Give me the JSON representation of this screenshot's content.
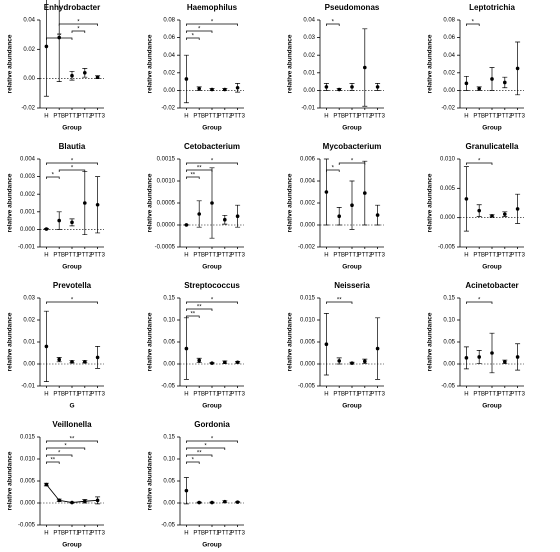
{
  "chart_data": [
    {
      "type": "dot",
      "title": "Enhydrobacter",
      "x_label": "Group",
      "y_label": "relative abundance",
      "categories": [
        "H",
        "PTB",
        "PTT1",
        "PTT2",
        "PTT3"
      ],
      "values": [
        0.022,
        0.028,
        0.002,
        0.004,
        0.001
      ],
      "errors": [
        0.034,
        0.03,
        0.003,
        0.003,
        0.001
      ],
      "ylim": [
        -0.02,
        0.04
      ],
      "yticks": [
        0.04,
        0.02,
        {
          "value": 0,
          "label": "0.00"
        },
        -0.02
      ],
      "zero_line": true,
      "color": "#000000",
      "brackets": [
        {
          "from": "H",
          "to": "PTT1",
          "label": "**"
        },
        {
          "from": "PTT1",
          "to": "PTT2",
          "label": "*"
        },
        {
          "from": "PTB",
          "to": "PTT3",
          "label": "*"
        }
      ]
    },
    {
      "type": "dot",
      "title": "Haemophilus",
      "x_label": "Group",
      "y_label": "relative abundance",
      "categories": [
        "H",
        "PTB",
        "PTT1",
        "PTT2",
        "PTT3"
      ],
      "values": [
        0.013,
        0.002,
        0.001,
        0.001,
        0.003
      ],
      "errors": [
        0.027,
        0.002,
        0.001,
        0.001,
        0.005
      ],
      "ylim": [
        -0.02,
        0.08
      ],
      "yticks": [
        0.08,
        0.06,
        0.04,
        0.02,
        {
          "value": 0,
          "label": "0.00"
        },
        -0.02
      ],
      "zero_line": true,
      "color": "#000000",
      "brackets": [
        {
          "from": "H",
          "to": "PTB",
          "label": "*"
        },
        {
          "from": "H",
          "to": "PTT1",
          "label": "*"
        },
        {
          "from": "H",
          "to": "PTT3",
          "label": "*"
        }
      ]
    },
    {
      "type": "dot",
      "title": "Pseudomonas",
      "x_label": "Group",
      "y_label": "relative abundance",
      "categories": [
        "H",
        "PTB",
        "PTT1",
        "PTT2",
        "PTT3"
      ],
      "values": [
        0.002,
        0.0005,
        0.002,
        0.013,
        0.002
      ],
      "errors": [
        0.002,
        0.0005,
        0.002,
        0.022,
        0.002
      ],
      "ylim": [
        -0.01,
        0.04
      ],
      "yticks": [
        0.04,
        0.03,
        0.02,
        0.01,
        {
          "value": 0,
          "label": "0.00"
        },
        -0.01
      ],
      "zero_line": true,
      "color": "#000000",
      "brackets": [
        {
          "from": "H",
          "to": "PTB",
          "label": "*"
        }
      ]
    },
    {
      "type": "dot",
      "title": "Leptotrichia",
      "x_label": "Group",
      "y_label": "relative abundance",
      "categories": [
        "H",
        "PTB",
        "PTT1",
        "PTT2",
        "PTT3"
      ],
      "values": [
        0.008,
        0.002,
        0.013,
        0.009,
        0.025
      ],
      "errors": [
        0.008,
        0.002,
        0.013,
        0.006,
        0.03
      ],
      "ylim": [
        -0.02,
        0.08
      ],
      "yticks": [
        0.08,
        0.06,
        0.04,
        0.02,
        {
          "value": 0,
          "label": "0.00"
        },
        -0.02
      ],
      "zero_line": true,
      "color": "#000000",
      "brackets": [
        {
          "from": "H",
          "to": "PTB",
          "label": "*"
        }
      ]
    },
    {
      "type": "dot",
      "title": "Blautia",
      "x_label": "Group",
      "y_label": "relative abundance",
      "categories": [
        "H",
        "PTB",
        "PTT1",
        "PTT2",
        "PTT3"
      ],
      "values": [
        2e-05,
        0.0005,
        0.0004,
        0.0015,
        0.0014
      ],
      "errors": [
        3e-05,
        0.0005,
        0.0002,
        0.0018,
        0.0016
      ],
      "ylim": [
        -0.001,
        0.004
      ],
      "yticks": [
        0.004,
        0.003,
        0.002,
        0.001,
        {
          "value": 0,
          "label": "0.000"
        },
        -0.001
      ],
      "zero_line": true,
      "color": "#000000",
      "brackets": [
        {
          "from": "H",
          "to": "PTB",
          "label": "*"
        },
        {
          "from": "PTB",
          "to": "PTT2",
          "label": "*"
        },
        {
          "from": "H",
          "to": "PTT3",
          "label": "*"
        }
      ]
    },
    {
      "type": "dot",
      "title": "Cetobacterium",
      "x_label": "Group",
      "y_label": "relative abundance",
      "categories": [
        "H",
        "PTB",
        "PTT1",
        "PTT2",
        "PTT3"
      ],
      "values": [
        2e-06,
        0.00025,
        0.0005,
        0.00012,
        0.0002
      ],
      "errors": [
        2e-06,
        0.0003,
        0.0008,
        0.0001,
        0.00025
      ],
      "ylim": [
        -0.0005,
        0.0015
      ],
      "yticks": [
        0.0015,
        {
          "value": 0.001,
          "label": "0.0010"
        },
        0.0005,
        {
          "value": 0,
          "label": "0.0000"
        },
        -0.0005
      ],
      "zero_line": true,
      "color": "#000000",
      "brackets": [
        {
          "from": "H",
          "to": "PTB",
          "label": "**"
        },
        {
          "from": "H",
          "to": "PTT1",
          "label": "**"
        },
        {
          "from": "H",
          "to": "PTT3",
          "label": "*"
        }
      ]
    },
    {
      "type": "dot",
      "title": "Mycobacterium",
      "x_label": "Group",
      "y_label": "relative abundance",
      "categories": [
        "H",
        "PTB",
        "PTT1",
        "PTT2",
        "PTT3"
      ],
      "values": [
        0.003,
        0.0008,
        0.0018,
        0.0029,
        0.0009
      ],
      "errors": [
        0.003,
        0.0008,
        0.0022,
        0.0029,
        0.0009
      ],
      "ylim": [
        -0.002,
        0.006
      ],
      "yticks": [
        0.006,
        0.004,
        0.002,
        {
          "value": 0,
          "label": "0.000"
        },
        -0.002
      ],
      "zero_line": true,
      "color": "#000000",
      "brackets": [
        {
          "from": "H",
          "to": "PTB",
          "label": "*"
        },
        {
          "from": "PTB",
          "to": "PTT2",
          "label": "*"
        }
      ]
    },
    {
      "type": "dot",
      "title": "Granulicatella",
      "x_label": "Group",
      "y_label": "relative abundance",
      "categories": [
        "H",
        "PTB",
        "PTT1",
        "PTT2",
        "PTT3"
      ],
      "values": [
        0.0032,
        0.0012,
        0.0003,
        0.0006,
        0.0015
      ],
      "errors": [
        0.0055,
        0.001,
        0.0002,
        0.0004,
        0.0025
      ],
      "ylim": [
        -0.005,
        0.01
      ],
      "yticks": [
        {
          "value": 0.01,
          "label": "0.010"
        },
        0.005,
        {
          "value": 0,
          "label": "0.000"
        },
        -0.005
      ],
      "zero_line": true,
      "color": "#000000",
      "brackets": [
        {
          "from": "H",
          "to": "PTT1",
          "label": "*"
        }
      ]
    },
    {
      "type": "dot",
      "title": "Prevotella",
      "x_label": "G",
      "y_label": "relative abundance",
      "categories": [
        "H",
        "PTB",
        "PTT1",
        "PTT2",
        "PTT3"
      ],
      "values": [
        0.008,
        0.002,
        0.001,
        0.001,
        0.003
      ],
      "errors": [
        0.016,
        0.001,
        0.0005,
        0.0005,
        0.005
      ],
      "ylim": [
        -0.01,
        0.03
      ],
      "yticks": [
        0.03,
        0.02,
        0.01,
        {
          "value": 0,
          "label": "0.00"
        },
        -0.01
      ],
      "zero_line": true,
      "color": "#000000",
      "brackets": [
        {
          "from": "H",
          "to": "PTT3",
          "label": "*"
        }
      ]
    },
    {
      "type": "dot",
      "title": "Streptococcus",
      "x_label": "Group",
      "y_label": "relative abundance",
      "categories": [
        "H",
        "PTB",
        "PTT1",
        "PTT2",
        "PTT3"
      ],
      "values": [
        0.035,
        0.008,
        0.002,
        0.004,
        0.004
      ],
      "errors": [
        0.07,
        0.005,
        0.001,
        0.003,
        0.002
      ],
      "ylim": [
        -0.05,
        0.15
      ],
      "yticks": [
        0.15,
        {
          "value": 0.1,
          "label": "0.10"
        },
        0.05,
        {
          "value": 0,
          "label": "0.00"
        },
        -0.05
      ],
      "zero_line": true,
      "color": "#000000",
      "brackets": [
        {
          "from": "H",
          "to": "PTB",
          "label": "**"
        },
        {
          "from": "H",
          "to": "PTT1",
          "label": "**"
        },
        {
          "from": "H",
          "to": "PTT3",
          "label": "*"
        }
      ]
    },
    {
      "type": "dot",
      "title": "Neisseria",
      "x_label": "Group",
      "y_label": "relative abundance",
      "categories": [
        "H",
        "PTB",
        "PTT1",
        "PTT2",
        "PTT3"
      ],
      "values": [
        0.0045,
        0.0007,
        0.0002,
        0.0006,
        0.0035
      ],
      "errors": [
        0.007,
        0.0007,
        0.0002,
        0.0005,
        0.007
      ],
      "ylim": [
        -0.005,
        0.015
      ],
      "yticks": [
        0.015,
        {
          "value": 0.01,
          "label": "0.010"
        },
        0.005,
        {
          "value": 0,
          "label": "0.000"
        },
        -0.005
      ],
      "zero_line": true,
      "color": "#000000",
      "brackets": [
        {
          "from": "H",
          "to": "PTT1",
          "label": "**"
        }
      ]
    },
    {
      "type": "dot",
      "title": "Acinetobacter",
      "x_label": "Group",
      "y_label": "relative abundance",
      "categories": [
        "H",
        "PTB",
        "PTT1",
        "PTT2",
        "PTT3"
      ],
      "values": [
        0.014,
        0.016,
        0.025,
        0.005,
        0.016
      ],
      "errors": [
        0.025,
        0.015,
        0.045,
        0.004,
        0.03
      ],
      "ylim": [
        -0.05,
        0.15
      ],
      "yticks": [
        0.15,
        {
          "value": 0.1,
          "label": "0.10"
        },
        0.05,
        {
          "value": 0,
          "label": "0.00"
        },
        -0.05
      ],
      "zero_line": true,
      "color": "#000000",
      "brackets": [
        {
          "from": "H",
          "to": "PTT1",
          "label": "*"
        }
      ]
    },
    {
      "type": "dot",
      "title": "Veillonella",
      "x_label": "Group",
      "y_label": "relative abundance",
      "categories": [
        "H",
        "PTB",
        "PTT1",
        "PTT2",
        "PTT3"
      ],
      "values": [
        0.0042,
        0.0006,
        0.0001,
        0.0004,
        0.0006
      ],
      "errors": [
        0.0003,
        0.0003,
        0.0001,
        0.0004,
        0.0008
      ],
      "ylim": [
        -0.005,
        0.015
      ],
      "yticks": [
        0.015,
        {
          "value": 0.01,
          "label": "0.010"
        },
        0.005,
        {
          "value": 0,
          "label": "0.000"
        },
        -0.005
      ],
      "zero_line": true,
      "connect": true,
      "color": "#000000",
      "brackets": [
        {
          "from": "H",
          "to": "PTB",
          "label": "**"
        },
        {
          "from": "H",
          "to": "PTT1",
          "label": "*"
        },
        {
          "from": "H",
          "to": "PTT2",
          "label": "*"
        },
        {
          "from": "H",
          "to": "PTT3",
          "label": "**"
        }
      ]
    },
    {
      "type": "dot",
      "title": "Gordonia",
      "x_label": "Group",
      "y_label": "relative abundance",
      "categories": [
        "H",
        "PTB",
        "PTT1",
        "PTT2",
        "PTT3"
      ],
      "values": [
        0.028,
        0.001,
        0.001,
        0.003,
        0.002
      ],
      "errors": [
        0.03,
        0.001,
        0.001,
        0.002,
        0.001
      ],
      "ylim": [
        -0.05,
        0.15
      ],
      "yticks": [
        0.15,
        {
          "value": 0.1,
          "label": "0.10"
        },
        0.05,
        {
          "value": 0,
          "label": "0.00"
        },
        -0.05
      ],
      "zero_line": true,
      "color": "#000000",
      "brackets": [
        {
          "from": "H",
          "to": "PTB",
          "label": "*"
        },
        {
          "from": "H",
          "to": "PTT1",
          "label": "**"
        },
        {
          "from": "H",
          "to": "PTT2",
          "label": "*"
        },
        {
          "from": "H",
          "to": "PTT3",
          "label": "*"
        }
      ]
    }
  ]
}
